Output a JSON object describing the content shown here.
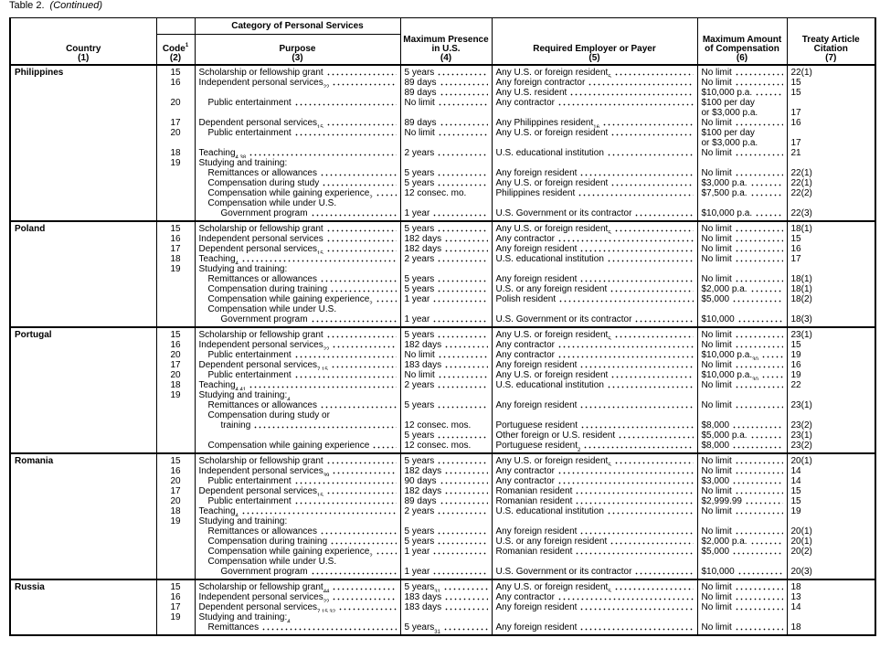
{
  "caption": {
    "label": "Table 2.",
    "continued": "(Continued)"
  },
  "headers": {
    "country": "Country",
    "country_num": "(1)",
    "category": "Category of Personal Services",
    "code": "Code",
    "code_sup": "1",
    "code_num": "(2)",
    "purpose": "Purpose",
    "purpose_num": "(3)",
    "presence": "Maximum Presence in U.S.",
    "presence_num": "(4)",
    "employer": "Required Employer or Payer",
    "employer_num": "(5)",
    "amount": "Maximum Amount of Compensation",
    "amount_num": "(6)",
    "citation": "Treaty Article Citation",
    "citation_num": "(7)"
  },
  "sections": [
    {
      "country": "Philippines",
      "lines": [
        {
          "code": "15",
          "purpose": "Scholarship or fellowship grant",
          "presence": "5 years",
          "employer": "Any U.S. or foreign resident",
          "employer_sup": "5",
          "amount": "No limit",
          "citation": "22(1)"
        },
        {
          "code": "16",
          "purpose": "Independent personal services",
          "purpose_sup": "22",
          "presence": "89 days",
          "employer": "Any foreign contractor",
          "amount": "No limit",
          "citation": "15"
        },
        {
          "presence": "89 days",
          "employer": "Any U.S. resident",
          "amount": "$10,000 p.a.",
          "citation": "15"
        },
        {
          "code": "20",
          "indent": 1,
          "purpose": "Public entertainment",
          "presence": "No limit",
          "employer": "Any contractor",
          "amount": "$100 per day",
          "amount_noleader": true
        },
        {
          "amount": "or $3,000 p.a.",
          "amount_noleader": true,
          "citation": "17"
        },
        {
          "code": "17",
          "purpose": "Dependent personal services",
          "purpose_sup": "15",
          "presence": "89 days",
          "employer": "Any Philippines resident",
          "employer_sup": "16",
          "amount": "No limit",
          "citation": "16"
        },
        {
          "code": "20",
          "indent": 1,
          "purpose": "Public entertainment",
          "presence": "No limit",
          "employer": "Any U.S. or foreign resident",
          "amount": "$100 per day",
          "amount_noleader": true
        },
        {
          "amount": "or $3,000 p.a.",
          "amount_noleader": true,
          "citation": "17"
        },
        {
          "code": "18",
          "purpose": "Teaching",
          "purpose_sup": "4,38",
          "presence": "2 years",
          "employer": "U.S. educational institution",
          "amount": "No limit",
          "citation": "21"
        },
        {
          "code": "19",
          "purpose": "Studying and training:",
          "purpose_noleader": true
        },
        {
          "indent": 1,
          "purpose": "Remittances or allowances",
          "presence": "5 years",
          "employer": "Any foreign resident",
          "amount": "No limit",
          "citation": "22(1)"
        },
        {
          "indent": 1,
          "purpose": "Compensation during study",
          "presence": "5 years",
          "employer": "Any U.S. or foreign resident",
          "amount": "$3,000 p.a.",
          "citation": "22(1)"
        },
        {
          "indent": 1,
          "purpose": "Compensation while gaining experience",
          "purpose_sup": "2",
          "presence": "12 consec. mo.",
          "presence_noleader": true,
          "employer": "Philippines resident",
          "amount": "$7,500 p.a.",
          "citation": "22(2)"
        },
        {
          "indent": 1,
          "purpose": "Compensation while under U.S.",
          "purpose_noleader": true
        },
        {
          "indent": 2,
          "purpose": "Government program",
          "presence": "1 year",
          "employer": "U.S. Government or its contractor",
          "amount": "$10,000 p.a.",
          "citation": "22(3)"
        }
      ]
    },
    {
      "country": "Poland",
      "lines": [
        {
          "code": "15",
          "purpose": "Scholarship or fellowship grant",
          "presence": "5 years",
          "employer": "Any U.S. or foreign resident",
          "employer_sup": "5",
          "amount": "No limit",
          "citation": "18(1)"
        },
        {
          "code": "16",
          "purpose": "Independent personal services",
          "presence": "182 days",
          "employer": "Any contractor",
          "amount": "No limit",
          "citation": "15"
        },
        {
          "code": "17",
          "purpose": "Dependent personal services",
          "purpose_sup": "15",
          "presence": "182 days",
          "employer": "Any foreign resident",
          "amount": "No limit",
          "citation": "16"
        },
        {
          "code": "18",
          "purpose": "Teaching",
          "purpose_sup": "4",
          "presence": "2 years",
          "employer": "U.S. educational institution",
          "amount": "No limit",
          "citation": "17"
        },
        {
          "code": "19",
          "purpose": "Studying and training:",
          "purpose_noleader": true
        },
        {
          "indent": 1,
          "purpose": "Remittances or allowances",
          "presence": "5 years",
          "employer": "Any foreign resident",
          "amount": "No limit",
          "citation": "18(1)"
        },
        {
          "indent": 1,
          "purpose": "Compensation during training",
          "presence": "5 years",
          "employer": "U.S. or any foreign resident",
          "amount": "$2,000 p.a.",
          "citation": "18(1)"
        },
        {
          "indent": 1,
          "purpose": "Compensation while gaining experience",
          "purpose_sup": "2",
          "presence": "1 year",
          "employer": "Polish resident",
          "amount": "$5,000",
          "citation": "18(2)"
        },
        {
          "indent": 1,
          "purpose": "Compensation while under U.S.",
          "purpose_noleader": true
        },
        {
          "indent": 2,
          "purpose": "Government program",
          "presence": "1 year",
          "employer": "U.S. Government or its contractor",
          "amount": "$10,000",
          "citation": "18(3)"
        }
      ]
    },
    {
      "country": "Portugal",
      "lines": [
        {
          "code": "15",
          "purpose": "Scholarship or fellowship grant",
          "presence": "5 years",
          "employer": "Any U.S. or foreign resident",
          "employer_sup": "5",
          "amount": "No limit",
          "citation": "23(1)"
        },
        {
          "code": "16",
          "purpose": "Independent personal services",
          "purpose_sup": "22",
          "presence": "182 days",
          "employer": "Any contractor",
          "amount": "No limit",
          "citation": "15"
        },
        {
          "code": "20",
          "indent": 1,
          "purpose": "Public entertainment",
          "presence": "No limit",
          "employer": "Any contractor",
          "amount": "$10,000 p.a.",
          "amount_sup": "30",
          "citation": "19"
        },
        {
          "code": "17",
          "purpose": "Dependent personal services",
          "purpose_sup": "7,15",
          "presence": "183 days",
          "employer": "Any foreign resident",
          "amount": "No limit",
          "citation": "16"
        },
        {
          "code": "20",
          "indent": 1,
          "purpose": "Public entertainment",
          "presence": "No limit",
          "employer": "Any U.S. or foreign resident",
          "amount": "$10,000 p.a.",
          "amount_sup": "30",
          "citation": "19"
        },
        {
          "code": "18",
          "purpose": "Teaching",
          "purpose_sup": "4,41",
          "presence": "2 years",
          "employer": "U.S. educational institution",
          "amount": "No limit",
          "citation": "22"
        },
        {
          "code": "19",
          "purpose": "Studying and training:",
          "purpose_sup": "4",
          "purpose_noleader": true
        },
        {
          "indent": 1,
          "purpose": "Remittances or allowances",
          "presence": "5 years",
          "employer": "Any foreign resident",
          "amount": "No limit",
          "citation": "23(1)"
        },
        {
          "indent": 1,
          "purpose": "Compensation during study or",
          "purpose_noleader": true
        },
        {
          "indent": 2,
          "purpose": "training",
          "presence": "12 consec. mos.",
          "presence_noleader": true,
          "employer": "Portuguese resident",
          "amount": "$8,000",
          "citation": "23(2)"
        },
        {
          "presence": "5 years",
          "employer": "Other foreign or U.S. resident",
          "amount": "$5,000 p.a.",
          "citation": "23(1)"
        },
        {
          "indent": 1,
          "purpose": "Compensation while gaining experience",
          "presence": "12 consec. mos.",
          "presence_noleader": true,
          "employer": "Portuguese resident",
          "employer_sup": "2",
          "amount": "$8,000",
          "citation": "23(2)"
        }
      ]
    },
    {
      "country": "Romania",
      "lines": [
        {
          "code": "15",
          "purpose": "Scholarship or fellowship grant",
          "presence": "5 years",
          "employer": "Any U.S. or foreign resident",
          "employer_sup": "5",
          "amount": "No limit",
          "citation": "20(1)"
        },
        {
          "code": "16",
          "purpose": "Independent personal services",
          "purpose_sup": "39",
          "presence": "182 days",
          "employer": "Any contractor",
          "amount": "No limit",
          "citation": "14"
        },
        {
          "code": "20",
          "indent": 1,
          "purpose": "Public entertainment",
          "presence": "90 days",
          "employer": "Any contractor",
          "amount": "$3,000",
          "citation": "14"
        },
        {
          "code": "17",
          "purpose": "Dependent personal services",
          "purpose_sup": "15",
          "presence": "182 days",
          "employer": "Romanian resident",
          "amount": "No limit",
          "citation": "15"
        },
        {
          "code": "20",
          "indent": 1,
          "purpose": "Public entertainment",
          "presence": "89 days",
          "employer": "Romanian resident",
          "amount": "$2,999.99",
          "citation": "15"
        },
        {
          "code": "18",
          "purpose": "Teaching",
          "purpose_sup": "4",
          "presence": "2 years",
          "employer": "U.S. educational institution",
          "amount": "No limit",
          "citation": "19"
        },
        {
          "code": "19",
          "purpose": "Studying and training:",
          "purpose_noleader": true
        },
        {
          "indent": 1,
          "purpose": "Remittances or allowances",
          "presence": "5 years",
          "employer": "Any foreign resident",
          "amount": "No limit",
          "citation": "20(1)"
        },
        {
          "indent": 1,
          "purpose": "Compensation during training",
          "presence": "5 years",
          "employer": "U.S. or any foreign resident",
          "amount": "$2,000 p.a.",
          "citation": "20(1)"
        },
        {
          "indent": 1,
          "purpose": "Compensation while gaining experience",
          "purpose_sup": "2",
          "presence": "1 year",
          "employer": "Romanian resident",
          "amount": "$5,000",
          "citation": "20(2)"
        },
        {
          "indent": 1,
          "purpose": "Compensation while under U.S.",
          "purpose_noleader": true
        },
        {
          "indent": 2,
          "purpose": "Government program",
          "presence": "1 year",
          "employer": "U.S. Government or its contractor",
          "amount": "$10,000",
          "citation": "20(3)"
        }
      ]
    },
    {
      "country": "Russia",
      "lines": [
        {
          "code": "15",
          "purpose": "Scholarship or fellowship grant",
          "purpose_sup": "44",
          "presence": "5 years",
          "presence_sup": "31",
          "employer": "Any U.S. or foreign resident",
          "employer_sup": "5",
          "amount": "No limit",
          "citation": "18"
        },
        {
          "code": "16",
          "purpose": "Independent personal services",
          "purpose_sup": "22",
          "presence": "183 days",
          "employer": "Any contractor",
          "amount": "No limit",
          "citation": "13"
        },
        {
          "code": "17",
          "purpose": "Dependent personal services",
          "purpose_sup": "7,15,32",
          "presence": "183 days",
          "employer": "Any foreign resident",
          "amount": "No limit",
          "citation": "14"
        },
        {
          "code": "19",
          "purpose": "Studying and training:",
          "purpose_sup": "4",
          "purpose_noleader": true
        },
        {
          "indent": 1,
          "purpose": "Remittances",
          "presence": "5 years",
          "presence_sup": "31",
          "employer": "Any foreign resident",
          "amount": "No limit",
          "citation": "18"
        }
      ]
    }
  ]
}
